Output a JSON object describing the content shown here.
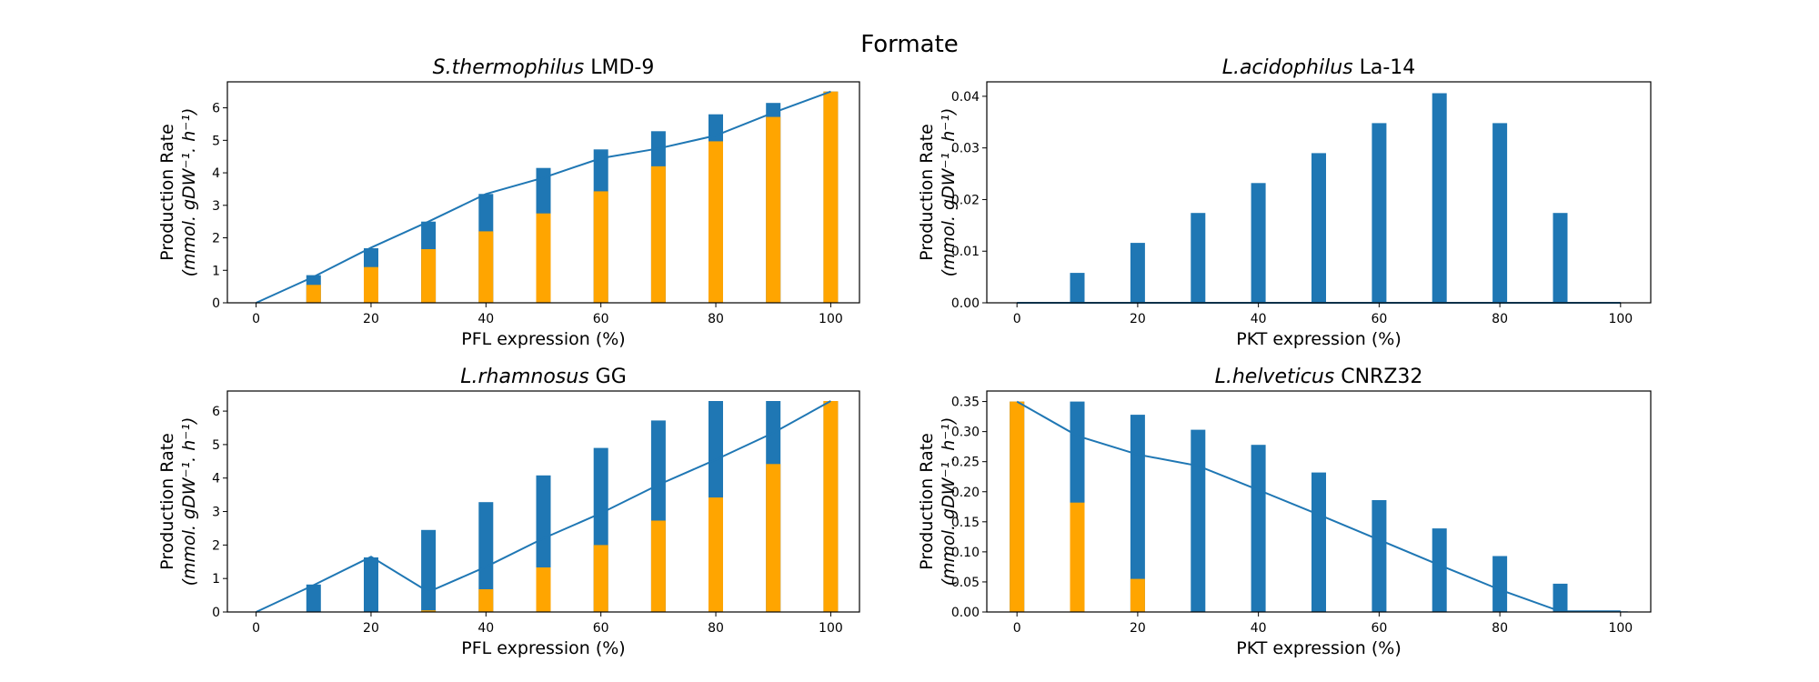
{
  "figure": {
    "title": "Formate"
  },
  "colors": {
    "blue": "#1f77b4",
    "orange": "#ffa500"
  },
  "chart_data": [
    {
      "type": "bar",
      "title_italic": "S.thermophilus",
      "title_rest": "LMD-9",
      "xlabel": "PFL expression (%)",
      "ylabel_line1": "Production Rate",
      "ylabel_line2": "(mmol. gDW⁻¹. h⁻¹)",
      "xlim": [
        -5,
        105
      ],
      "ylim": [
        0,
        6.8
      ],
      "xticks": [
        0,
        20,
        40,
        60,
        80,
        100
      ],
      "yticks": [
        0,
        1,
        2,
        3,
        4,
        5,
        6
      ],
      "ytick_labels": [
        "0",
        "1",
        "2",
        "3",
        "4",
        "5",
        "6"
      ],
      "x": [
        0,
        10,
        20,
        30,
        40,
        50,
        60,
        70,
        80,
        90,
        100
      ],
      "series": [
        {
          "color": "blue",
          "values": [
            0,
            0.85,
            1.68,
            2.5,
            3.35,
            4.15,
            4.72,
            5.28,
            5.8,
            6.15,
            6.5
          ]
        },
        {
          "color": "orange",
          "values": [
            0,
            0.55,
            1.1,
            1.65,
            2.2,
            2.75,
            3.43,
            4.2,
            4.97,
            5.72,
            6.5
          ]
        }
      ],
      "line": {
        "color": "blue",
        "values": [
          0,
          0.8,
          1.7,
          2.5,
          3.35,
          3.85,
          4.45,
          4.75,
          5.15,
          5.85,
          6.5
        ]
      }
    },
    {
      "type": "bar",
      "title_italic": "L.acidophilus",
      "title_rest": "La-14",
      "xlabel": "PKT expression (%)",
      "ylabel_line1": "Production Rate",
      "ylabel_line2": "(mmol. gDW⁻¹. h⁻¹)",
      "xlim": [
        -5,
        105
      ],
      "ylim": [
        0,
        0.0428
      ],
      "xticks": [
        0,
        20,
        40,
        60,
        80,
        100
      ],
      "yticks": [
        0,
        0.01,
        0.02,
        0.03,
        0.04
      ],
      "ytick_labels": [
        "0.00",
        "0.01",
        "0.02",
        "0.03",
        "0.04"
      ],
      "x": [
        0,
        10,
        20,
        30,
        40,
        50,
        60,
        70,
        80,
        90,
        100
      ],
      "series": [
        {
          "color": "blue",
          "values": [
            0,
            0.0058,
            0.0116,
            0.0174,
            0.0232,
            0.029,
            0.0348,
            0.0406,
            0.0348,
            0.0174,
            0
          ]
        }
      ],
      "line": {
        "color": "blue",
        "values": [
          0,
          0,
          0,
          0,
          0,
          0,
          0,
          0,
          0,
          0,
          0
        ]
      }
    },
    {
      "type": "bar",
      "title_italic": "L.rhamnosus",
      "title_rest": "GG",
      "xlabel": "PFL expression (%)",
      "ylabel_line1": "Production Rate",
      "ylabel_line2": "(mmol. gDW⁻¹. h⁻¹)",
      "xlim": [
        -5,
        105
      ],
      "ylim": [
        0,
        6.6
      ],
      "xticks": [
        0,
        20,
        40,
        60,
        80,
        100
      ],
      "yticks": [
        0,
        1,
        2,
        3,
        4,
        5,
        6
      ],
      "ytick_labels": [
        "0",
        "1",
        "2",
        "3",
        "4",
        "5",
        "6"
      ],
      "x": [
        0,
        10,
        20,
        30,
        40,
        50,
        60,
        70,
        80,
        90,
        100
      ],
      "series": [
        {
          "color": "blue",
          "values": [
            0,
            0.82,
            1.63,
            2.45,
            3.28,
            4.08,
            4.9,
            5.72,
            6.3,
            6.3,
            6.3
          ]
        },
        {
          "color": "orange",
          "values": [
            0,
            0,
            0,
            0.05,
            0.68,
            1.33,
            2.0,
            2.73,
            3.42,
            4.42,
            6.3
          ]
        }
      ],
      "line": {
        "color": "blue",
        "values": [
          0,
          0.8,
          1.65,
          0.6,
          1.35,
          2.2,
          2.95,
          3.8,
          4.55,
          5.35,
          6.3
        ]
      }
    },
    {
      "type": "bar",
      "title_italic": "L.helveticus",
      "title_rest": "CNRZ32",
      "xlabel": "PKT expression (%)",
      "ylabel_line1": "Production Rate",
      "ylabel_line2": "(mmol. gDW⁻¹. h⁻¹)",
      "xlim": [
        -5,
        105
      ],
      "ylim": [
        0,
        0.3675
      ],
      "xticks": [
        0,
        20,
        40,
        60,
        80,
        100
      ],
      "yticks": [
        0,
        0.05,
        0.1,
        0.15,
        0.2,
        0.25,
        0.3,
        0.35
      ],
      "ytick_labels": [
        "0.00",
        "0.05",
        "0.10",
        "0.15",
        "0.20",
        "0.25",
        "0.30",
        "0.35"
      ],
      "x": [
        0,
        10,
        20,
        30,
        40,
        50,
        60,
        70,
        80,
        90,
        100
      ],
      "series": [
        {
          "color": "blue",
          "values": [
            0.35,
            0.35,
            0.328,
            0.303,
            0.278,
            0.232,
            0.186,
            0.139,
            0.093,
            0.047,
            0.001
          ]
        },
        {
          "color": "orange",
          "values": [
            0.35,
            0.182,
            0.055,
            0,
            0,
            0,
            0,
            0,
            0,
            0,
            0
          ]
        }
      ],
      "line": {
        "color": "blue",
        "values": [
          0.35,
          0.293,
          0.262,
          0.243,
          0.203,
          0.162,
          0.12,
          0.078,
          0.037,
          0.001,
          0.001
        ]
      }
    }
  ]
}
